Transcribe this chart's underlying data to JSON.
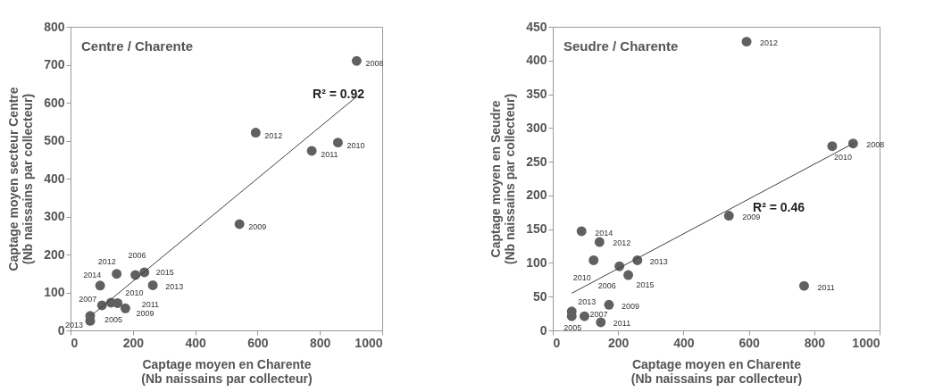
{
  "chart_data": [
    {
      "type": "scatter",
      "title": "Centre / Charente",
      "xlabel": "Captage moyen en Charente\n(Nb naissains par collecteur)",
      "ylabel": "Captage moyen secteur Centre\n(Nb naissains par collecteur)",
      "xlim": [
        0,
        1000
      ],
      "xticks": [
        0,
        200,
        400,
        600,
        800,
        1000
      ],
      "ylim": [
        0,
        800
      ],
      "yticks": [
        0,
        100,
        200,
        300,
        400,
        500,
        600,
        700,
        800
      ],
      "series": [
        {
          "type": "scatter",
          "marker": "circle",
          "color": "#606060",
          "x": [
            63,
            63,
            95,
            148,
            208,
            237,
            264,
            101,
            130,
            151,
            176,
            918,
            594,
            774,
            858,
            542
          ],
          "values": [
            25,
            38,
            118,
            149,
            146,
            153,
            119,
            66,
            73,
            72,
            58,
            710,
            521,
            473,
            495,
            280
          ]
        },
        {
          "type": "line",
          "color": "#404040",
          "x": [
            65,
            921
          ],
          "values": [
            38,
            618
          ]
        }
      ],
      "annotations": [
        {
          "text": "2013",
          "x": 63,
          "y": 25
        },
        {
          "text": "2005",
          "x": 63,
          "y": 38
        },
        {
          "text": "2014",
          "x": 95,
          "y": 118
        },
        {
          "text": "2012",
          "x": 148,
          "y": 149
        },
        {
          "text": "2006",
          "x": 208,
          "y": 146
        },
        {
          "text": "2015",
          "x": 237,
          "y": 153
        },
        {
          "text": "2013",
          "x": 264,
          "y": 119
        },
        {
          "text": "2007",
          "x": 101,
          "y": 66
        },
        {
          "text": "2010",
          "x": 130,
          "y": 73
        },
        {
          "text": "2011",
          "x": 151,
          "y": 72
        },
        {
          "text": "2009",
          "x": 176,
          "y": 58
        },
        {
          "text": "2008",
          "x": 918,
          "y": 710
        },
        {
          "text": "2012",
          "x": 594,
          "y": 521
        },
        {
          "text": "2011",
          "x": 774,
          "y": 473
        },
        {
          "text": "2010",
          "x": 858,
          "y": 495
        },
        {
          "text": "2009",
          "x": 542,
          "y": 280
        },
        "R² = 0.92"
      ]
    },
    {
      "type": "scatter",
      "title": "Seudre / Charente",
      "xlabel": "Captage moyen en Charente\n(Nb naissains par collecteur)",
      "ylabel": "Captage moyen en Seudre\n(Nb naissains par collecteur)",
      "xlim": [
        0,
        1000
      ],
      "xticks": [
        0,
        200,
        400,
        600,
        800,
        1000
      ],
      "ylim": [
        0,
        450
      ],
      "yticks": [
        0,
        50,
        100,
        150,
        200,
        250,
        300,
        350,
        400,
        450
      ],
      "series": [
        {
          "type": "scatter",
          "marker": "circle",
          "color": "#606060",
          "x": [
            539,
            88,
            143,
            125,
            204,
            259,
            231,
            769,
            172,
            58,
            58,
            97,
            147,
            593,
            855,
            919
          ],
          "values": [
            170,
            147,
            131,
            104,
            95,
            104,
            82,
            66,
            38,
            28,
            21,
            21,
            12,
            428,
            273,
            277
          ]
        },
        {
          "type": "line",
          "color": "#404040",
          "x": [
            58,
            919
          ],
          "values": [
            55,
            277
          ]
        }
      ],
      "annotations": [
        {
          "text": "2009",
          "x": 539,
          "y": 170
        },
        {
          "text": "2014",
          "x": 88,
          "y": 147
        },
        {
          "text": "2012",
          "x": 143,
          "y": 131
        },
        {
          "text": "2010",
          "x": 125,
          "y": 104
        },
        {
          "text": "2006",
          "x": 204,
          "y": 95
        },
        {
          "text": "2013",
          "x": 259,
          "y": 104
        },
        {
          "text": "2015",
          "x": 231,
          "y": 82
        },
        {
          "text": "2011",
          "x": 769,
          "y": 66
        },
        {
          "text": "2009",
          "x": 172,
          "y": 38
        },
        {
          "text": "2013",
          "x": 58,
          "y": 28
        },
        {
          "text": "2005",
          "x": 58,
          "y": 21
        },
        {
          "text": "2007",
          "x": 97,
          "y": 21
        },
        {
          "text": "2011",
          "x": 147,
          "y": 12
        },
        {
          "text": "2012",
          "x": 593,
          "y": 428
        },
        {
          "text": "2010",
          "x": 855,
          "y": 273
        },
        {
          "text": "2008",
          "x": 919,
          "y": 277
        },
        "R² = 0.46"
      ]
    }
  ]
}
